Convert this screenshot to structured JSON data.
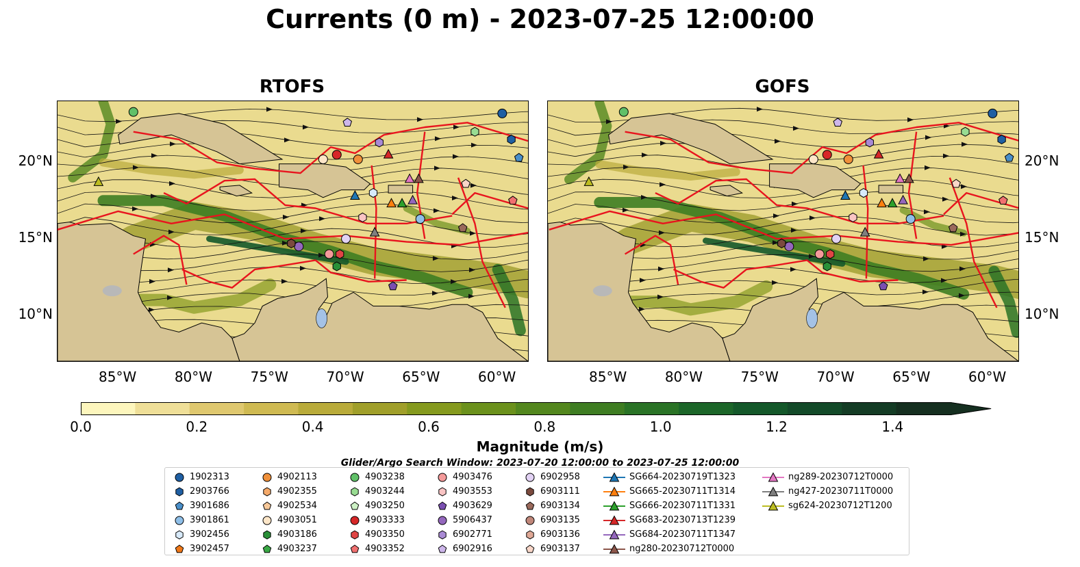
{
  "title": "Currents (0 m) - 2023-07-25 12:00:00",
  "panels": [
    {
      "id": "rtofs",
      "title": "RTOFS"
    },
    {
      "id": "gofs",
      "title": "GOFS"
    }
  ],
  "map_extent": {
    "lon": [
      -89,
      -58
    ],
    "lat": [
      7,
      24
    ]
  },
  "lat_ticks": [
    {
      "value": 20,
      "label": "20°N"
    },
    {
      "value": 15,
      "label": "15°N"
    },
    {
      "value": 10,
      "label": "10°N"
    }
  ],
  "lon_ticks": [
    {
      "value": -85,
      "label": "85°W"
    },
    {
      "value": -80,
      "label": "80°W"
    },
    {
      "value": -75,
      "label": "75°W"
    },
    {
      "value": -70,
      "label": "70°W"
    },
    {
      "value": -65,
      "label": "65°W"
    },
    {
      "value": -60,
      "label": "60°W"
    }
  ],
  "colorbar": {
    "label": "Magnitude (m/s)",
    "min": 0.0,
    "max": 1.5,
    "extend": "max",
    "tick_labels": [
      "0.0",
      "0.2",
      "0.4",
      "0.6",
      "0.8",
      "1.0",
      "1.2",
      "1.4"
    ],
    "colors": [
      "#fdf6bd",
      "#efdf98",
      "#dfc86f",
      "#cfba52",
      "#b9ab3a",
      "#a09f2a",
      "#859a1e",
      "#6b911c",
      "#53871e",
      "#3e7d22",
      "#2a7326",
      "#1c6629",
      "#14582a",
      "#134a29",
      "#143c25",
      "#152f20"
    ],
    "land_color": "#d6c495",
    "lake_color": "#a4c2e6"
  },
  "search_window": "Glider/Argo Search Window: 2023-07-20 12:00:00 to 2023-07-25 12:00:00",
  "legend": [
    {
      "label": "1902313",
      "marker": "circle",
      "color": "#1f5fa3"
    },
    {
      "label": "2903766",
      "marker": "hexagon",
      "color": "#1f5fa3"
    },
    {
      "label": "3901686",
      "marker": "pentagon",
      "color": "#4a8fc9"
    },
    {
      "label": "3901861",
      "marker": "circle",
      "color": "#8fbfe8"
    },
    {
      "label": "3902456",
      "marker": "hexagon",
      "color": "#d8eafa"
    },
    {
      "label": "3902457",
      "marker": "pentagon",
      "color": "#f07818"
    },
    {
      "label": "4902113",
      "marker": "circle",
      "color": "#f0903a"
    },
    {
      "label": "4902355",
      "marker": "hexagon",
      "color": "#f5aa6a"
    },
    {
      "label": "4902534",
      "marker": "pentagon",
      "color": "#f8c99a"
    },
    {
      "label": "4903051",
      "marker": "circle",
      "color": "#fde6c8"
    },
    {
      "label": "4903186",
      "marker": "hexagon",
      "color": "#2a9038"
    },
    {
      "label": "4903237",
      "marker": "pentagon",
      "color": "#3aa845"
    },
    {
      "label": "4903238",
      "marker": "circle",
      "color": "#60c068"
    },
    {
      "label": "4903244",
      "marker": "hexagon",
      "color": "#98dc92"
    },
    {
      "label": "4903250",
      "marker": "pentagon",
      "color": "#ccf0c4"
    },
    {
      "label": "4903333",
      "marker": "circle",
      "color": "#d62728"
    },
    {
      "label": "4903350",
      "marker": "hexagon",
      "color": "#e04545"
    },
    {
      "label": "4903352",
      "marker": "pentagon",
      "color": "#f07070"
    },
    {
      "label": "4903476",
      "marker": "circle",
      "color": "#f49a9a"
    },
    {
      "label": "4903553",
      "marker": "hexagon",
      "color": "#f9c4c4"
    },
    {
      "label": "4903629",
      "marker": "pentagon",
      "color": "#7a4fb0"
    },
    {
      "label": "5906437",
      "marker": "circle",
      "color": "#9467bd"
    },
    {
      "label": "6902771",
      "marker": "hexagon",
      "color": "#a98ad4"
    },
    {
      "label": "6902916",
      "marker": "pentagon",
      "color": "#cdb6ea"
    },
    {
      "label": "6902958",
      "marker": "circle",
      "color": "#e2d2f4"
    },
    {
      "label": "6903111",
      "marker": "hexagon",
      "color": "#7b4a3e"
    },
    {
      "label": "6903134",
      "marker": "pentagon",
      "color": "#9a6a5c"
    },
    {
      "label": "6903135",
      "marker": "circle",
      "color": "#c0877a"
    },
    {
      "label": "6903136",
      "marker": "hexagon",
      "color": "#dfa896"
    },
    {
      "label": "6903137",
      "marker": "pentagon",
      "color": "#f8d6c8"
    },
    {
      "label": "SG664-20230719T1323",
      "marker": "triangle",
      "color": "#1f77b4"
    },
    {
      "label": "SG665-20230711T1314",
      "marker": "triangle",
      "color": "#ff7f0e"
    },
    {
      "label": "SG666-20230711T1331",
      "marker": "triangle",
      "color": "#2ca02c"
    },
    {
      "label": "SG683-20230713T1239",
      "marker": "triangle",
      "color": "#d62728"
    },
    {
      "label": "SG684-20230711T1347",
      "marker": "triangle",
      "color": "#9467bd"
    },
    {
      "label": "ng280-20230712T0000",
      "marker": "triangle",
      "color": "#8c564b"
    },
    {
      "label": "ng289-20230712T0000",
      "marker": "triangle",
      "color": "#e377c2"
    },
    {
      "label": "ng427-20230711T0000",
      "marker": "triangle",
      "color": "#7f7f7f"
    },
    {
      "label": "sg624-20230712T1200",
      "marker": "triangle",
      "color": "#bcbd22"
    }
  ],
  "observations": [
    {
      "id": "1902313",
      "lon": -59.7,
      "lat": 23.2
    },
    {
      "id": "2903766",
      "lon": -59.1,
      "lat": 21.5
    },
    {
      "id": "3901686",
      "lon": -58.6,
      "lat": 20.3
    },
    {
      "id": "3901861",
      "lon": -65.1,
      "lat": 16.3
    },
    {
      "id": "3902456",
      "lon": -68.2,
      "lat": 18.0
    },
    {
      "id": "4902113",
      "lon": -69.2,
      "lat": 20.2
    },
    {
      "id": "4903238",
      "lon": -84.0,
      "lat": 23.3
    },
    {
      "id": "4903244",
      "lon": -61.5,
      "lat": 22.0
    },
    {
      "id": "4903333",
      "lon": -70.6,
      "lat": 20.5
    },
    {
      "id": "4903350",
      "lon": -70.4,
      "lat": 14.0
    },
    {
      "id": "4903352",
      "lon": -59.0,
      "lat": 17.5
    },
    {
      "id": "4903476",
      "lon": -71.1,
      "lat": 14.0
    },
    {
      "id": "4903553",
      "lon": -68.9,
      "lat": 16.4
    },
    {
      "id": "4903629",
      "lon": -66.9,
      "lat": 11.9
    },
    {
      "id": "5906437",
      "lon": -73.1,
      "lat": 14.5
    },
    {
      "id": "6902771",
      "lon": -67.8,
      "lat": 21.3
    },
    {
      "id": "6902916",
      "lon": -69.9,
      "lat": 22.6
    },
    {
      "id": "6902958",
      "lon": -70.0,
      "lat": 15.0
    },
    {
      "id": "6903111",
      "lon": -73.6,
      "lat": 14.7
    },
    {
      "id": "6903134",
      "lon": -62.3,
      "lat": 15.7
    },
    {
      "id": "6903137",
      "lon": -62.1,
      "lat": 18.6
    },
    {
      "id": "4903051",
      "lon": -71.5,
      "lat": 20.2
    },
    {
      "id": "4903186",
      "lon": -70.6,
      "lat": 13.2
    },
    {
      "id": "SG664-20230719T1323",
      "lon": -69.4,
      "lat": 17.8
    },
    {
      "id": "SG665-20230711T1314",
      "lon": -67.0,
      "lat": 17.3
    },
    {
      "id": "SG666-20230711T1331",
      "lon": -66.3,
      "lat": 17.3
    },
    {
      "id": "SG683-20230713T1239",
      "lon": -67.2,
      "lat": 20.5
    },
    {
      "id": "ng280-20230712T0000",
      "lon": -65.2,
      "lat": 18.9
    },
    {
      "id": "ng289-20230712T0000",
      "lon": -65.8,
      "lat": 18.9
    },
    {
      "id": "ng427-20230711T0000",
      "lon": -68.1,
      "lat": 15.4
    },
    {
      "id": "SG684-20230711T1347",
      "lon": -65.6,
      "lat": 17.5
    },
    {
      "id": "sg624-20230712T1200",
      "lon": -86.3,
      "lat": 18.7
    }
  ]
}
